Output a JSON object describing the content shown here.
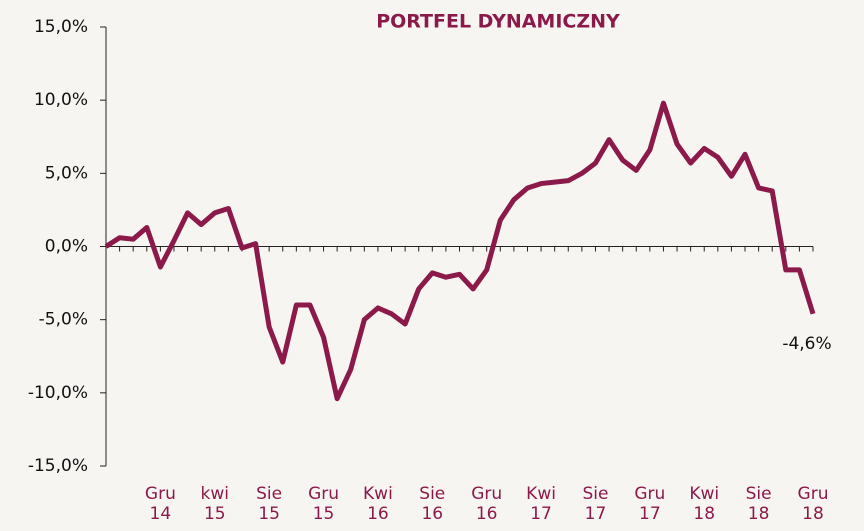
{
  "chart_data": {
    "type": "line",
    "title": "PORTFEL DYNAMICZNY",
    "categories": [
      null,
      null,
      null,
      null,
      "Gru 14",
      null,
      null,
      null,
      "kwi 15",
      null,
      null,
      null,
      "Sie 15",
      null,
      null,
      null,
      "Gru 15",
      null,
      null,
      null,
      "Kwi 16",
      null,
      null,
      null,
      "Sie 16",
      null,
      null,
      null,
      "Gru 16",
      null,
      null,
      null,
      "Kwi 17",
      null,
      null,
      null,
      "Sie 17",
      null,
      null,
      null,
      "Gru 17",
      null,
      null,
      null,
      "Kwi 18",
      null,
      null,
      null,
      "Sie 18",
      null,
      null,
      null,
      "Gru 18"
    ],
    "series": [
      {
        "color": "#8b1a4a",
        "values": [
          0,
          0.6,
          0.5,
          1.3,
          -1.4,
          0.4,
          2.3,
          1.5,
          2.3,
          2.6,
          -0.1,
          0.2,
          -5.5,
          -7.9,
          -4.0,
          -4.0,
          -6.2,
          -10.4,
          -8.4,
          -5.0,
          -4.2,
          -4.6,
          -5.3,
          -2.9,
          -1.8,
          -2.1,
          -1.9,
          -2.9,
          -1.6,
          1.8,
          3.2,
          4.0,
          4.3,
          4.4,
          4.5,
          5.0,
          5.7,
          7.3,
          5.9,
          5.2,
          6.6,
          9.8,
          7.0,
          5.7,
          6.7,
          6.1,
          4.8,
          6.3,
          4.0,
          3.8,
          -1.6,
          -1.6,
          -4.6
        ],
        "value_labels": [
          null,
          null,
          null,
          null,
          null,
          null,
          null,
          null,
          null,
          null,
          null,
          null,
          null,
          null,
          null,
          null,
          null,
          null,
          null,
          null,
          null,
          null,
          null,
          null,
          null,
          null,
          null,
          null,
          null,
          null,
          null,
          null,
          null,
          null,
          null,
          null,
          null,
          null,
          null,
          null,
          null,
          null,
          null,
          null,
          null,
          null,
          null,
          null,
          null,
          null,
          null,
          null,
          "-4,6%"
        ]
      }
    ],
    "ylim": [
      -15,
      15
    ],
    "yticks": [
      {
        "value": -15,
        "label": "-15,0%"
      },
      {
        "value": -10,
        "label": "-10,0%"
      },
      {
        "value": -5,
        "label": "-5,0%"
      },
      {
        "value": 0,
        "label": "0,0%"
      },
      {
        "value": 5,
        "label": "5,0%"
      },
      {
        "value": 10,
        "label": "10,0%"
      },
      {
        "value": 15,
        "label": "15,0%"
      }
    ]
  }
}
